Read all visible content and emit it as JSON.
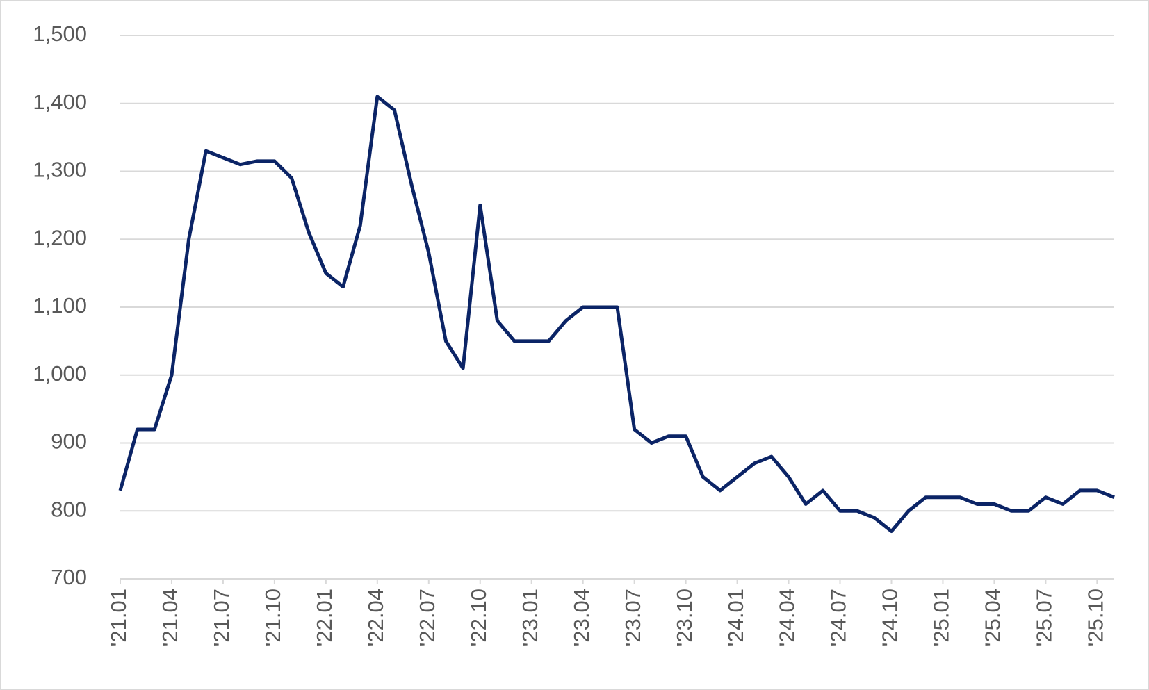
{
  "chart_data": {
    "type": "line",
    "categories": [
      "'21.01",
      null,
      null,
      "'21.04",
      null,
      null,
      "'21.07",
      null,
      null,
      "'21.10",
      null,
      null,
      "'22.01",
      null,
      null,
      "'22.04",
      null,
      null,
      "'22.07",
      null,
      null,
      "'22.10",
      null,
      null,
      "'23.01",
      null,
      null,
      "'23.04",
      null,
      null,
      "'23.07",
      null,
      null,
      "'23.10",
      null,
      null,
      "'24.01",
      null,
      null,
      "'24.04",
      null,
      null,
      "'24.07",
      null,
      null,
      "'24.10",
      null,
      null,
      "'25.01",
      null,
      null,
      "'25.04",
      null,
      null,
      "'25.07",
      null,
      null,
      "'25.10",
      null
    ],
    "values": [
      830,
      920,
      920,
      1000,
      1200,
      1330,
      1320,
      1310,
      1315,
      1315,
      1290,
      1210,
      1150,
      1130,
      1220,
      1410,
      1390,
      1280,
      1180,
      1050,
      1010,
      1250,
      1080,
      1050,
      1050,
      1050,
      1080,
      1100,
      1100,
      1100,
      920,
      900,
      910,
      910,
      850,
      830,
      850,
      870,
      880,
      850,
      810,
      830,
      800,
      800,
      790,
      770,
      800,
      820,
      820,
      820,
      810,
      810,
      800,
      800,
      820,
      810,
      830,
      830,
      820
    ],
    "color": "#0b2466",
    "ylim": [
      700,
      1500
    ],
    "yticks": [
      700,
      800,
      900,
      {
        "value": 1000,
        "label": "1,000"
      },
      {
        "value": 1100,
        "label": "1,100"
      },
      {
        "value": 1200,
        "label": "1,200"
      },
      {
        "value": 1300,
        "label": "1,300"
      },
      {
        "value": 1400,
        "label": "1,400"
      },
      {
        "value": 1500,
        "label": "1,500"
      }
    ],
    "grid": true
  }
}
